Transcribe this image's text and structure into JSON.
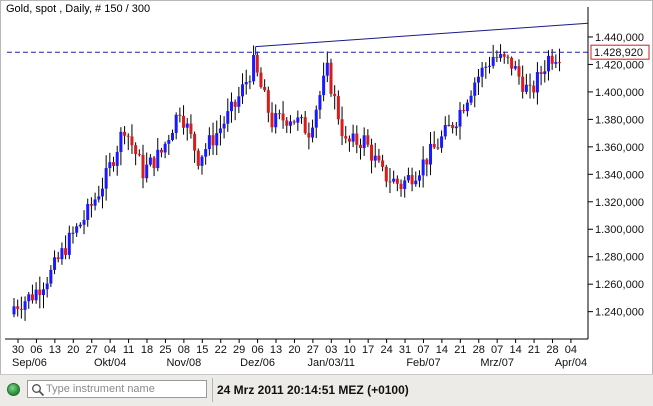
{
  "chart_data": {
    "type": "candlestick",
    "title": "Gold, spot , Daily, # 150 / 300",
    "y_ticks": [
      "1.240,000",
      "1.260,000",
      "1.280,000",
      "1.300,000",
      "1.320,000",
      "1.340,000",
      "1.360,000",
      "1.380,000",
      "1.400,000",
      "1.420,000",
      "1.440,000"
    ],
    "y_tick_values": [
      1240,
      1260,
      1280,
      1300,
      1320,
      1340,
      1360,
      1380,
      1400,
      1420,
      1440
    ],
    "ylim": [
      1223,
      1456
    ],
    "x_day_labels": [
      "30",
      "06",
      "13",
      "20",
      "27",
      "04",
      "11",
      "18",
      "25",
      "08",
      "15",
      "22",
      "29",
      "06",
      "13",
      "20",
      "27",
      "03",
      "10",
      "17",
      "24",
      "31",
      "07",
      "14",
      "21",
      "28",
      "07",
      "14",
      "21",
      "28",
      "04"
    ],
    "x_month_labels": [
      "Sep/06",
      "Okt/04",
      "Nov/08",
      "Dez/06",
      "Jan/03/11",
      "Feb/07",
      "Mrz/07",
      "Apr/04"
    ],
    "last_price": 1428.92,
    "last_price_label": "1.428,920",
    "trend_line": {
      "from_week": "Dez/06",
      "to": "Mrz/24",
      "start_value": 1433,
      "end_value": 1450
    },
    "weekly_closes": [
      1244,
      1252,
      1268,
      1292,
      1312,
      1338,
      1375,
      1342,
      1356,
      1388,
      1352,
      1370,
      1390,
      1420,
      1378,
      1382,
      1372,
      1415,
      1362,
      1365,
      1340,
      1332,
      1345,
      1362,
      1381,
      1408,
      1426,
      1420,
      1398,
      1425,
      1431
    ],
    "up_color": "#1a1aff",
    "down_color": "#d81b1b",
    "grid": false
  },
  "status": {
    "search_placeholder": "Type instrument name",
    "timestamp": "24 Mrz 2011 20:14:51  MEZ (+0100)"
  }
}
